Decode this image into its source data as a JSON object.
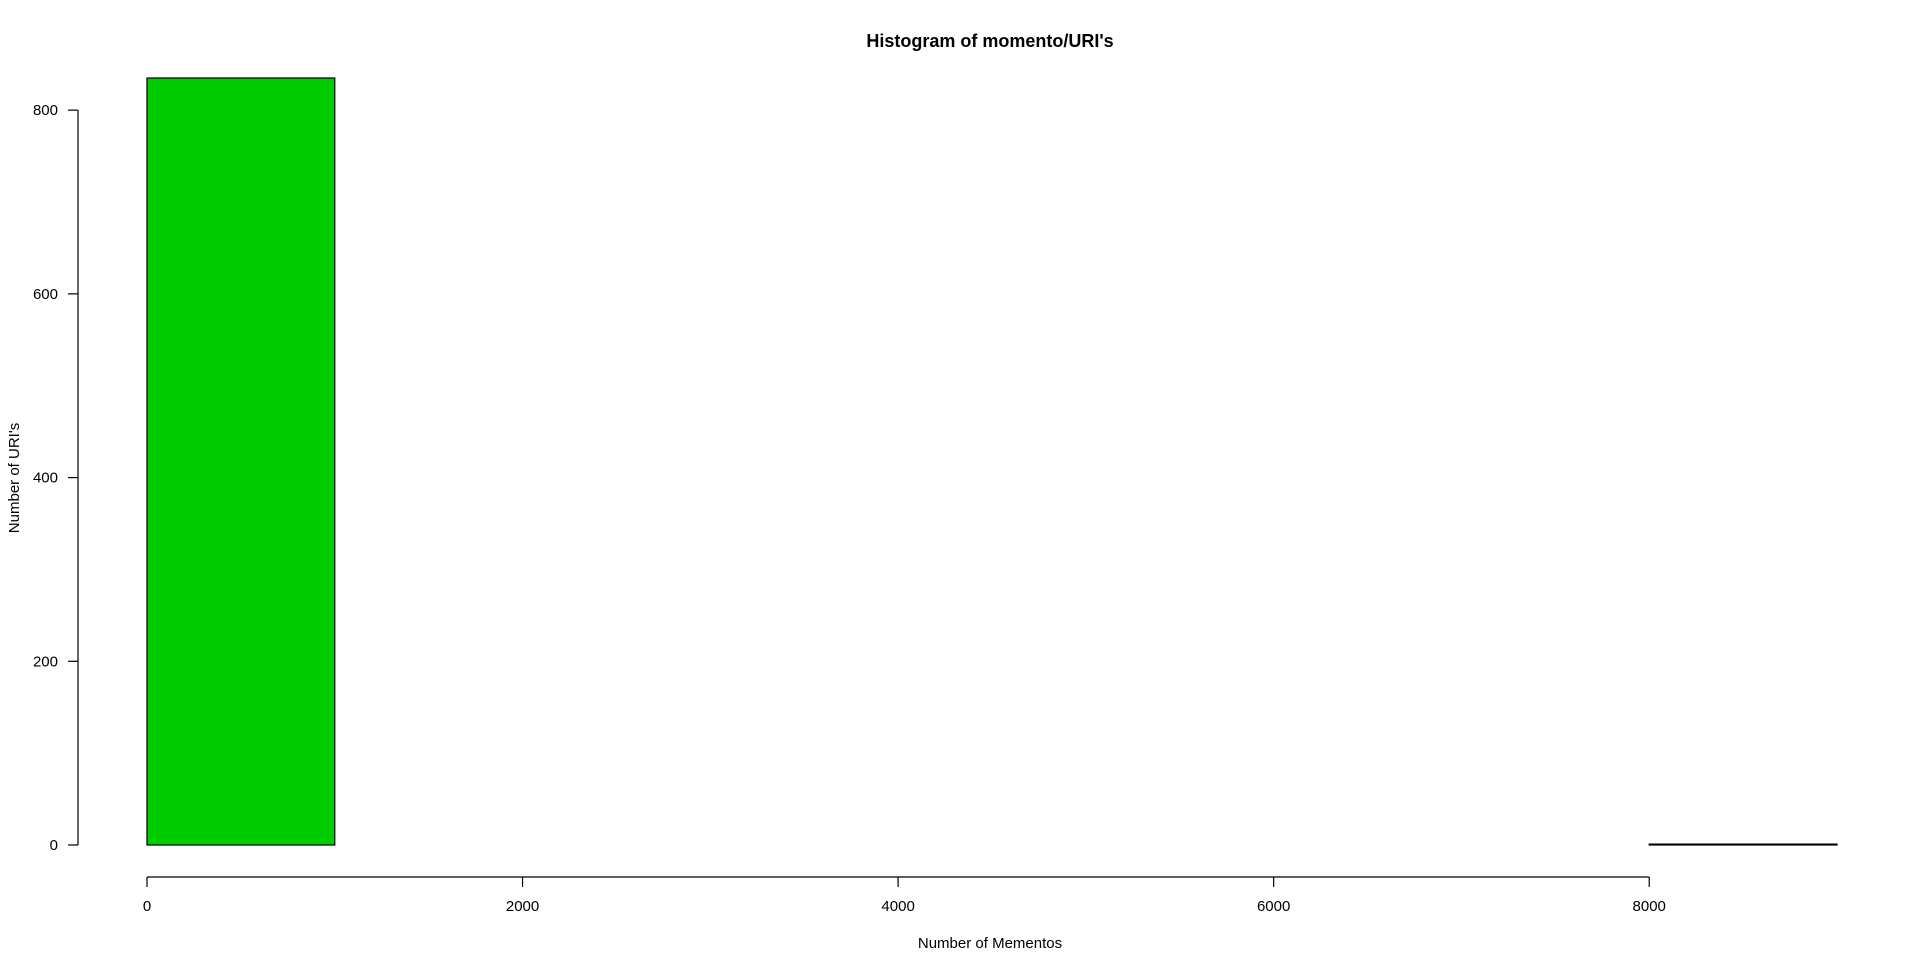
{
  "chart_data": {
    "type": "bar",
    "title": "Histogram of momento/URI's",
    "xlabel": "Number of Mementos",
    "ylabel": "Number of URI's",
    "bins": [
      {
        "start": 0,
        "end": 1000,
        "count": 835
      },
      {
        "start": 1000,
        "end": 2000,
        "count": 0
      },
      {
        "start": 2000,
        "end": 3000,
        "count": 0
      },
      {
        "start": 3000,
        "end": 4000,
        "count": 0
      },
      {
        "start": 4000,
        "end": 5000,
        "count": 0
      },
      {
        "start": 5000,
        "end": 6000,
        "count": 0
      },
      {
        "start": 6000,
        "end": 7000,
        "count": 0
      },
      {
        "start": 7000,
        "end": 8000,
        "count": 0
      },
      {
        "start": 8000,
        "end": 9000,
        "count": 1
      }
    ],
    "xticks": [
      0,
      2000,
      4000,
      6000,
      8000
    ],
    "yticks": [
      0,
      200,
      400,
      600,
      800
    ],
    "xlim": [
      0,
      9000
    ],
    "ylim": [
      0,
      835
    ],
    "grid": false,
    "legend": "none",
    "colors": {
      "bar_fill": "#00cd00",
      "bar_stroke": "#000000",
      "axis": "#000000"
    }
  }
}
